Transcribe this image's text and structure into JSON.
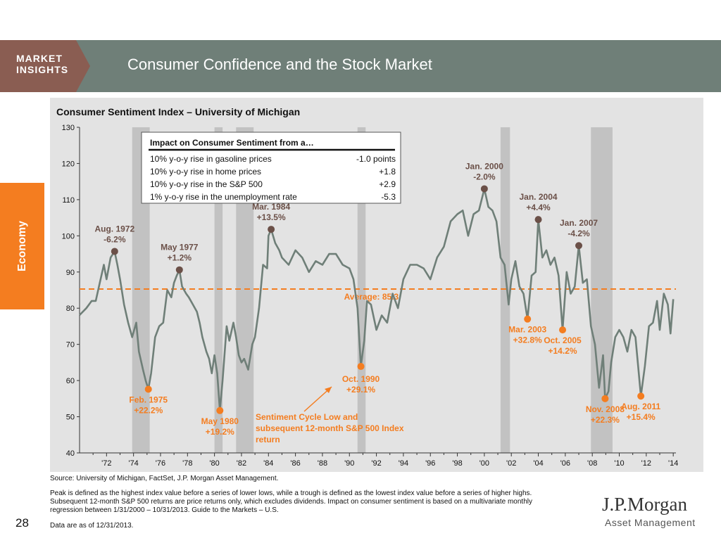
{
  "header": {
    "badge_line1": "MARKET",
    "badge_line2": "INSIGHTS",
    "title": "Consumer Confidence and the Stock Market"
  },
  "side_tab": "Economy",
  "page_number": "28",
  "source": "Source: University of Michigan, FactSet, J.P. Morgan Asset Management.",
  "footnote": "Peak is defined as the highest index value before a series of lower lows, while a trough is defined as the lowest index value before a series of higher highs. Subsequent 12-month S&P 500 returns are price returns only, which excludes dividends. Impact on consumer sentiment is based on a multivariate monthly regression between 1/31/2000 – 10/31/2013. Guide to the Markets – U.S.",
  "as_of": "Data are as of 12/31/2013.",
  "logo": {
    "name": "J.P.Morgan",
    "sub": "Asset Management"
  },
  "chart_data": {
    "type": "line",
    "title": "Consumer Sentiment Index – University of Michigan",
    "ylim": [
      40,
      130
    ],
    "xlim": [
      1970.0,
      2014.2
    ],
    "yticks": [
      40,
      50,
      60,
      70,
      80,
      90,
      100,
      110,
      120,
      130
    ],
    "xticks": [
      {
        "label": "'72",
        "x": 1972
      },
      {
        "label": "'74",
        "x": 1974
      },
      {
        "label": "'76",
        "x": 1976
      },
      {
        "label": "'78",
        "x": 1978
      },
      {
        "label": "'80",
        "x": 1980
      },
      {
        "label": "'82",
        "x": 1982
      },
      {
        "label": "'84",
        "x": 1984
      },
      {
        "label": "'86",
        "x": 1986
      },
      {
        "label": "'88",
        "x": 1988
      },
      {
        "label": "'90",
        "x": 1990
      },
      {
        "label": "'92",
        "x": 1992
      },
      {
        "label": "'94",
        "x": 1994
      },
      {
        "label": "'96",
        "x": 1996
      },
      {
        "label": "'98",
        "x": 1998
      },
      {
        "label": "'00",
        "x": 2000
      },
      {
        "label": "'02",
        "x": 2002
      },
      {
        "label": "'04",
        "x": 2004
      },
      {
        "label": "'06",
        "x": 2006
      },
      {
        "label": "'08",
        "x": 2008
      },
      {
        "label": "'10",
        "x": 2010
      },
      {
        "label": "'12",
        "x": 2012
      },
      {
        "label": "'14",
        "x": 2014
      }
    ],
    "recessions": [
      [
        1973.9,
        1975.2
      ],
      [
        1980.0,
        1980.6
      ],
      [
        1981.6,
        1982.9
      ],
      [
        1990.6,
        1991.2
      ],
      [
        2001.2,
        2001.9
      ],
      [
        2007.9,
        2009.5
      ]
    ],
    "average": {
      "value": 85.3,
      "label": "Average: 85.3"
    },
    "series": [
      {
        "color": "#6f7f78",
        "points": [
          [
            1970.0,
            78.1
          ],
          [
            1970.5,
            80.0
          ],
          [
            1970.9,
            82.0
          ],
          [
            1971.2,
            82.0
          ],
          [
            1971.5,
            87.0
          ],
          [
            1971.8,
            92.0
          ],
          [
            1972.0,
            88.0
          ],
          [
            1972.3,
            94.0
          ],
          [
            1972.6,
            95.7
          ],
          [
            1972.8,
            92.0
          ],
          [
            1973.0,
            88.0
          ],
          [
            1973.3,
            81.0
          ],
          [
            1973.6,
            76.0
          ],
          [
            1973.9,
            72.0
          ],
          [
            1974.2,
            76.0
          ],
          [
            1974.4,
            68.0
          ],
          [
            1974.7,
            63.0
          ],
          [
            1974.9,
            60.0
          ],
          [
            1975.1,
            57.6
          ],
          [
            1975.3,
            62.0
          ],
          [
            1975.6,
            72.0
          ],
          [
            1975.9,
            75.0
          ],
          [
            1976.2,
            76.0
          ],
          [
            1976.5,
            85.0
          ],
          [
            1976.8,
            83.0
          ],
          [
            1977.0,
            87.0
          ],
          [
            1977.2,
            89.0
          ],
          [
            1977.4,
            90.6
          ],
          [
            1977.6,
            86.0
          ],
          [
            1977.9,
            84.0
          ],
          [
            1978.1,
            83.0
          ],
          [
            1978.4,
            81.0
          ],
          [
            1978.7,
            79.0
          ],
          [
            1978.9,
            76.0
          ],
          [
            1979.1,
            72.0
          ],
          [
            1979.4,
            68.0
          ],
          [
            1979.6,
            66.0
          ],
          [
            1979.8,
            62.0
          ],
          [
            1980.0,
            67.0
          ],
          [
            1980.2,
            62.0
          ],
          [
            1980.4,
            51.7
          ],
          [
            1980.6,
            60.0
          ],
          [
            1980.9,
            75.0
          ],
          [
            1981.1,
            71.0
          ],
          [
            1981.4,
            76.0
          ],
          [
            1981.6,
            72.0
          ],
          [
            1981.8,
            67.0
          ],
          [
            1982.0,
            65.0
          ],
          [
            1982.2,
            66.0
          ],
          [
            1982.5,
            63.0
          ],
          [
            1982.8,
            70.0
          ],
          [
            1983.0,
            72.0
          ],
          [
            1983.3,
            80.0
          ],
          [
            1983.6,
            92.0
          ],
          [
            1983.9,
            91.0
          ],
          [
            1984.0,
            100.0
          ],
          [
            1984.2,
            101.8
          ],
          [
            1984.5,
            98.0
          ],
          [
            1984.8,
            96.0
          ],
          [
            1985.0,
            94.0
          ],
          [
            1985.5,
            92.0
          ],
          [
            1986.0,
            96.0
          ],
          [
            1986.5,
            94.0
          ],
          [
            1987.0,
            90.0
          ],
          [
            1987.5,
            93.0
          ],
          [
            1988.0,
            92.0
          ],
          [
            1988.5,
            95.0
          ],
          [
            1989.0,
            95.0
          ],
          [
            1989.5,
            92.0
          ],
          [
            1990.0,
            91.0
          ],
          [
            1990.3,
            88.0
          ],
          [
            1990.6,
            80.0
          ],
          [
            1990.85,
            63.9
          ],
          [
            1991.1,
            71.0
          ],
          [
            1991.3,
            82.0
          ],
          [
            1991.6,
            81.0
          ],
          [
            1992.0,
            74.0
          ],
          [
            1992.4,
            78.0
          ],
          [
            1992.8,
            76.0
          ],
          [
            1993.2,
            84.0
          ],
          [
            1993.6,
            80.0
          ],
          [
            1994.0,
            88.0
          ],
          [
            1994.5,
            92.0
          ],
          [
            1995.0,
            92.0
          ],
          [
            1995.5,
            91.0
          ],
          [
            1996.0,
            88.0
          ],
          [
            1996.5,
            94.0
          ],
          [
            1997.0,
            97.0
          ],
          [
            1997.5,
            104.0
          ],
          [
            1998.0,
            106.0
          ],
          [
            1998.4,
            107.0
          ],
          [
            1998.8,
            100.0
          ],
          [
            1999.2,
            106.0
          ],
          [
            1999.6,
            107.0
          ],
          [
            2000.0,
            113.0
          ],
          [
            2000.3,
            108.0
          ],
          [
            2000.6,
            107.0
          ],
          [
            2000.9,
            104.0
          ],
          [
            2001.2,
            94.0
          ],
          [
            2001.5,
            92.0
          ],
          [
            2001.8,
            81.0
          ],
          [
            2002.0,
            88.0
          ],
          [
            2002.3,
            93.0
          ],
          [
            2002.6,
            86.0
          ],
          [
            2002.9,
            84.0
          ],
          [
            2003.2,
            77.0
          ],
          [
            2003.5,
            89.0
          ],
          [
            2003.8,
            90.0
          ],
          [
            2004.0,
            104.5
          ],
          [
            2004.3,
            94.0
          ],
          [
            2004.6,
            96.0
          ],
          [
            2004.9,
            92.0
          ],
          [
            2005.2,
            94.0
          ],
          [
            2005.5,
            89.0
          ],
          [
            2005.8,
            74.0
          ],
          [
            2006.1,
            90.0
          ],
          [
            2006.4,
            84.0
          ],
          [
            2006.7,
            86.0
          ],
          [
            2007.0,
            97.3
          ],
          [
            2007.3,
            87.0
          ],
          [
            2007.6,
            88.0
          ],
          [
            2007.9,
            75.0
          ],
          [
            2008.2,
            70.0
          ],
          [
            2008.5,
            58.0
          ],
          [
            2008.8,
            67.0
          ],
          [
            2008.95,
            55.0
          ],
          [
            2009.2,
            57.0
          ],
          [
            2009.4,
            65.0
          ],
          [
            2009.7,
            72.0
          ],
          [
            2010.0,
            74.0
          ],
          [
            2010.3,
            72.0
          ],
          [
            2010.6,
            68.0
          ],
          [
            2010.9,
            74.0
          ],
          [
            2011.2,
            72.0
          ],
          [
            2011.4,
            64.0
          ],
          [
            2011.6,
            55.7
          ],
          [
            2011.9,
            64.0
          ],
          [
            2012.2,
            75.0
          ],
          [
            2012.5,
            76.0
          ],
          [
            2012.8,
            82.0
          ],
          [
            2013.0,
            74.0
          ],
          [
            2013.3,
            84.0
          ],
          [
            2013.6,
            81.0
          ],
          [
            2013.8,
            73.0
          ],
          [
            2014.0,
            82.5
          ]
        ]
      }
    ],
    "peaks": [
      {
        "x": 1972.6,
        "y": 95.7,
        "line1": "Aug. 1972",
        "line2": "-6.2%"
      },
      {
        "x": 1977.4,
        "y": 90.6,
        "line1": "May 1977",
        "line2": "+1.2%"
      },
      {
        "x": 1984.2,
        "y": 101.8,
        "line1": "Mar. 1984",
        "line2": "+13.5%"
      },
      {
        "x": 2000.0,
        "y": 113.0,
        "line1": "Jan. 2000",
        "line2": "-2.0%"
      },
      {
        "x": 2004.0,
        "y": 104.5,
        "line1": "Jan. 2004",
        "line2": "+4.4%"
      },
      {
        "x": 2007.0,
        "y": 97.3,
        "line1": "Jan. 2007",
        "line2": "-4.2%"
      }
    ],
    "troughs": [
      {
        "x": 1975.1,
        "y": 57.6,
        "line1": "Feb. 1975",
        "line2": "+22.2%"
      },
      {
        "x": 1980.4,
        "y": 51.7,
        "line1": "May 1980",
        "line2": "+19.2%"
      },
      {
        "x": 1990.85,
        "y": 63.9,
        "line1": "Oct. 1990",
        "line2": "+29.1%"
      },
      {
        "x": 2003.2,
        "y": 77.0,
        "line1": "Mar. 2003",
        "line2": "+32.8%"
      },
      {
        "x": 2005.8,
        "y": 74.0,
        "line1": "Oct. 2005",
        "line2": "+14.2%"
      },
      {
        "x": 2008.95,
        "y": 55.0,
        "line1": "Nov. 2008",
        "line2": "+22.3%"
      },
      {
        "x": 2011.6,
        "y": 55.7,
        "line1": "Aug. 2011",
        "line2": "+15.4%"
      }
    ],
    "annotation": {
      "lines": [
        "Sentiment Cycle Low and",
        "subsequent 12-month S&P 500 Index",
        "return"
      ]
    },
    "impact_table": {
      "title": "Impact on Consumer Sentiment from a…",
      "rows": [
        {
          "label": "10% y-o-y rise in gasoline prices",
          "value": "-1.0 points"
        },
        {
          "label": "10% y-o-y rise in home prices",
          "value": "+1.8"
        },
        {
          "label": "10% y-o-y rise in the S&P 500",
          "value": "+2.9"
        },
        {
          "label": "1% y-o-y rise in the unemployment rate",
          "value": "-5.3"
        }
      ]
    },
    "colors": {
      "line": "#6f7f78",
      "peak": "#6b5048",
      "trough": "#f47d20",
      "peak_label": "#6b5048",
      "trough_label": "#f47d20",
      "average": "#f47d20",
      "recession": "#c2c2c2"
    }
  }
}
